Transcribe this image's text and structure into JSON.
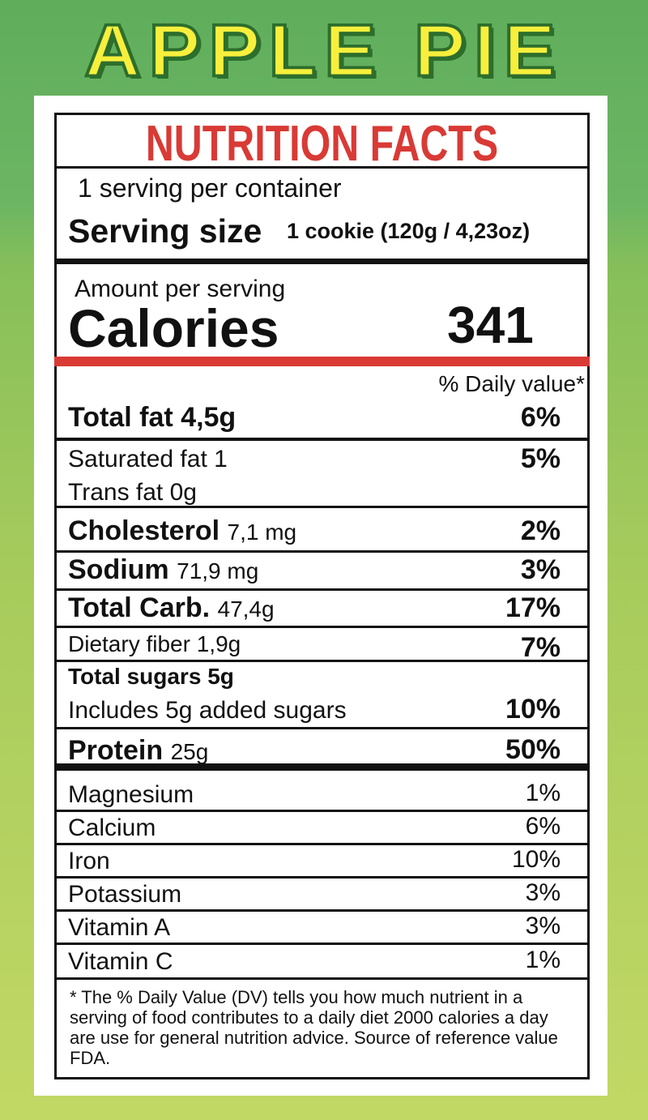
{
  "header": {
    "title": "APPLE PIE"
  },
  "label": {
    "title": "NUTRITION FACTS",
    "servings": "1 serving per container",
    "serving_size_label": "Serving size",
    "serving_size": "1 cookie (120g / 4,23oz)",
    "amount_label": "Amount per serving",
    "calories_label": "Calories",
    "calories": 341,
    "dv_header": "% Daily value*",
    "nutrients": [
      {
        "name": "Total fat",
        "amount": "4,5g",
        "dv": "6%"
      },
      {
        "name": "Saturated fat",
        "amount": "1",
        "dv": "5%"
      },
      {
        "name": "Trans fat",
        "amount": "0g"
      },
      {
        "name": "Cholesterol",
        "amount": "7,1 mg",
        "dv": "2%"
      },
      {
        "name": "Sodium",
        "amount": "71,9 mg",
        "dv": "3%"
      },
      {
        "name": "Total Carb.",
        "amount": "47,4g",
        "dv": "17%"
      },
      {
        "name": "Dietary fiber",
        "amount": "1,9g",
        "dv": "7%"
      },
      {
        "name": "Total sugars",
        "amount": "5g"
      },
      {
        "name": "Includes 5g added sugars",
        "dv": "10%"
      },
      {
        "name": "Protein",
        "amount": "25g",
        "dv": "50%"
      }
    ],
    "minerals": [
      {
        "name": "Magnesium",
        "dv": "1%"
      },
      {
        "name": "Calcium",
        "dv": "6%"
      },
      {
        "name": "Iron",
        "dv": "10%"
      },
      {
        "name": "Potassium",
        "dv": "3%"
      },
      {
        "name": "Vitamin A",
        "dv": "3%"
      },
      {
        "name": "Vitamin C",
        "dv": "1%"
      }
    ],
    "footnote": "* The % Daily Value (DV) tells you how much nutrient in a serving of food contributes to a daily diet 2000 calories a day are use for general nutrition advice. Source of reference value FDA."
  }
}
